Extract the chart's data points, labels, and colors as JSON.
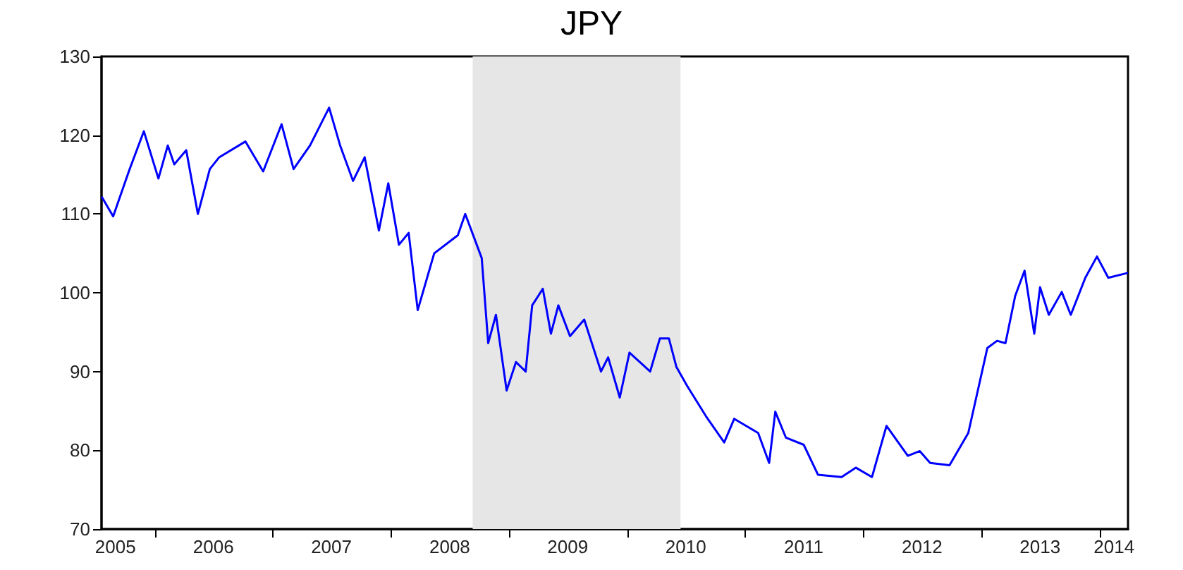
{
  "chart_data": {
    "type": "line",
    "title": "JPY",
    "x": [
      "2005-07-22",
      "2005-08-25",
      "2005-10-15",
      "2005-11-28",
      "2006-01-12",
      "2006-02-10",
      "2006-03-02",
      "2006-04-08",
      "2006-05-14",
      "2006-06-20",
      "2006-07-19",
      "2006-10-08",
      "2006-12-02",
      "2007-01-28",
      "2007-03-06",
      "2007-04-26",
      "2007-06-24",
      "2007-07-28",
      "2007-09-06",
      "2007-10-12",
      "2007-11-25",
      "2007-12-24",
      "2008-01-26",
      "2008-02-25",
      "2008-03-24",
      "2008-05-14",
      "2008-07-26",
      "2008-08-18",
      "2008-10-08",
      "2008-10-28",
      "2008-11-21",
      "2008-12-24",
      "2009-01-22",
      "2009-02-21",
      "2009-03-13",
      "2009-04-15",
      "2009-05-10",
      "2009-06-02",
      "2009-07-08",
      "2009-08-21",
      "2009-10-12",
      "2009-11-03",
      "2009-12-09",
      "2010-01-08",
      "2010-03-13",
      "2010-04-12",
      "2010-05-10",
      "2010-06-02",
      "2010-07-05",
      "2010-09-02",
      "2010-10-28",
      "2010-11-28",
      "2011-02-10",
      "2011-03-16",
      "2011-04-04",
      "2011-05-07",
      "2011-07-01",
      "2011-08-14",
      "2011-10-26",
      "2011-12-09",
      "2012-01-28",
      "2012-03-13",
      "2012-05-18",
      "2012-06-24",
      "2012-07-26",
      "2012-09-24",
      "2012-11-21",
      "2013-01-19",
      "2013-02-18",
      "2013-03-16",
      "2013-04-15",
      "2013-05-14",
      "2013-06-13",
      "2013-07-01",
      "2013-07-28",
      "2013-09-06",
      "2013-10-04",
      "2013-11-18",
      "2013-12-24",
      "2014-01-28",
      "2014-03-27"
    ],
    "series": [
      {
        "color": "#0000ff",
        "values": [
          112.1,
          109.7,
          115.7,
          120.5,
          114.5,
          118.7,
          116.3,
          118.1,
          110.0,
          115.7,
          117.2,
          119.2,
          115.4,
          121.4,
          115.7,
          118.7,
          123.5,
          118.7,
          114.2,
          117.2,
          107.9,
          113.9,
          106.1,
          107.6,
          97.8,
          105.0,
          107.3,
          110.0,
          104.4,
          93.6,
          97.2,
          87.6,
          91.2,
          90.0,
          98.4,
          100.5,
          94.8,
          98.4,
          94.5,
          96.6,
          90.0,
          91.8,
          86.7,
          92.4,
          90.0,
          94.2,
          94.2,
          90.6,
          88.2,
          84.3,
          81.0,
          84.0,
          82.2,
          78.4,
          84.9,
          81.6,
          80.7,
          76.9,
          76.6,
          77.8,
          76.6,
          83.1,
          79.3,
          79.9,
          78.4,
          78.1,
          82.2,
          93.0,
          93.9,
          93.6,
          99.6,
          102.8,
          94.8,
          100.7,
          97.2,
          100.1,
          97.2,
          101.9,
          104.6,
          101.9,
          102.5
        ]
      }
    ],
    "xlim": [
      "2005-07-20",
      "2014-03-30"
    ],
    "xticks": [
      {
        "value": "2005-09-01",
        "label": "2005"
      },
      {
        "value": "2006-01-01",
        "label": null
      },
      {
        "value": "2006-07-01",
        "label": "2006"
      },
      {
        "value": "2007-01-01",
        "label": null
      },
      {
        "value": "2007-07-01",
        "label": "2007"
      },
      {
        "value": "2008-01-01",
        "label": null
      },
      {
        "value": "2008-07-01",
        "label": "2008"
      },
      {
        "value": "2009-01-01",
        "label": null
      },
      {
        "value": "2009-07-01",
        "label": "2009"
      },
      {
        "value": "2010-01-01",
        "label": null
      },
      {
        "value": "2010-07-01",
        "label": "2010"
      },
      {
        "value": "2011-01-01",
        "label": null
      },
      {
        "value": "2011-07-01",
        "label": "2011"
      },
      {
        "value": "2012-01-01",
        "label": null
      },
      {
        "value": "2012-07-01",
        "label": "2012"
      },
      {
        "value": "2013-01-01",
        "label": null
      },
      {
        "value": "2013-07-01",
        "label": "2013"
      },
      {
        "value": "2014-01-01",
        "label": null
      },
      {
        "value": "2014-02-15",
        "label": "2014"
      }
    ],
    "ylim": [
      70,
      130
    ],
    "yticks": [
      70,
      80,
      90,
      100,
      110,
      120,
      130
    ],
    "bands": [
      {
        "axis": "x",
        "from": "2008-09-10",
        "to": "2010-06-15",
        "color": "#e6e6e6"
      }
    ],
    "grid": false,
    "marker": "none",
    "line_style": "solid"
  }
}
